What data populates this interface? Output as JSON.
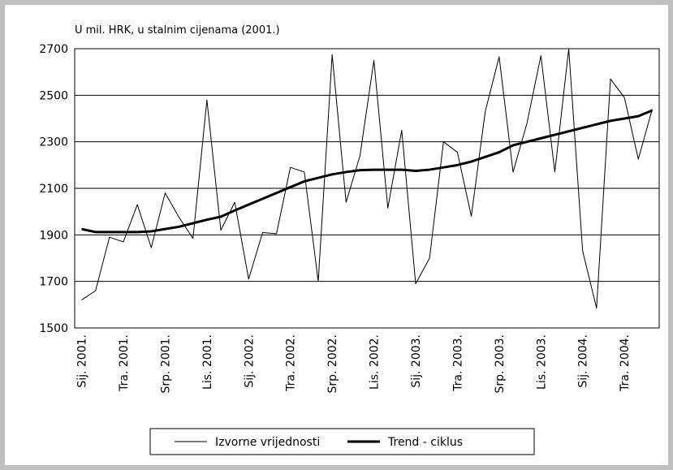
{
  "chart_data": {
    "type": "line",
    "y_label": "U mil. HRK, u stalnim cijenama (2001.)",
    "categories": [
      "Sij. 2001.",
      null,
      null,
      "Tra. 2001.",
      null,
      null,
      "Srp. 2001.",
      null,
      null,
      "Lis. 2001.",
      null,
      null,
      "Sij. 2002.",
      null,
      null,
      "Tra. 2002.",
      null,
      null,
      "Srp. 2002.",
      null,
      null,
      "Lis. 2002.",
      null,
      null,
      "Sij. 2003.",
      null,
      null,
      "Tra. 2003.",
      null,
      null,
      "Srp. 2003.",
      null,
      null,
      "Lis. 2003.",
      null,
      null,
      "Sij. 2004.",
      null,
      null,
      "Tra. 2004.",
      null,
      null
    ],
    "series": [
      {
        "name": "Izvorne vrijednosti",
        "color": "#000000",
        "width": 1,
        "values": [
          1620,
          1660,
          1890,
          1870,
          2030,
          1845,
          2080,
          1975,
          1885,
          2480,
          1920,
          2040,
          1710,
          1910,
          1905,
          2190,
          2170,
          1700,
          2675,
          2040,
          2240,
          2650,
          2015,
          2350,
          1690,
          1800,
          2300,
          2255,
          1980,
          2430,
          2665,
          2170,
          2380,
          2670,
          2170,
          2700,
          1830,
          1585,
          2570,
          2490,
          2225,
          2440
        ]
      },
      {
        "name": "Trend - ciklus",
        "color": "#000000",
        "width": 3,
        "values": [
          1925,
          1912,
          1912,
          1912,
          1912,
          1915,
          1925,
          1935,
          1950,
          1965,
          1978,
          2005,
          2030,
          2055,
          2080,
          2105,
          2130,
          2145,
          2160,
          2170,
          2178,
          2180,
          2180,
          2180,
          2175,
          2180,
          2190,
          2200,
          2215,
          2235,
          2255,
          2285,
          2300,
          2315,
          2330,
          2345,
          2360,
          2375,
          2390,
          2400,
          2410,
          2435
        ]
      }
    ],
    "ylim": [
      1500,
      2700
    ],
    "yticks": [
      1500,
      1700,
      1900,
      2100,
      2300,
      2500,
      2700
    ],
    "grid": true,
    "legend": "bottom"
  }
}
